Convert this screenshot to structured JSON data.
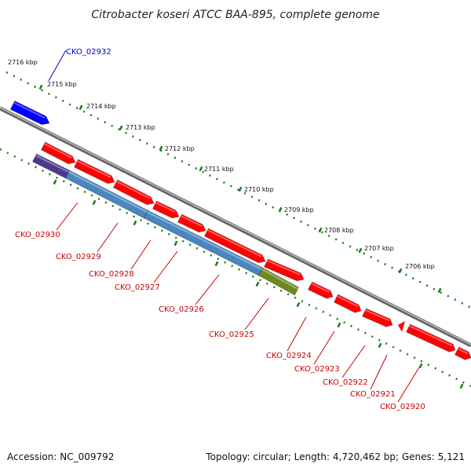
{
  "title": "Citrobacter koseri ATCC BAA-895, complete genome",
  "footer": {
    "accession": "Accession: NC_009792",
    "summary": "Topology: circular; Length: 4,720,462 bp; Genes: 5,121"
  },
  "colors": {
    "forward_gene": "#ff0000",
    "reverse_gene_red": "#ff0000",
    "blue_gene": "#0000ff",
    "steel_gene": "#4a86c0",
    "purple_gene": "#4a3a90",
    "olive_gene": "#6e8a1e",
    "label_red": "#cc0000",
    "label_blue": "#0000cc",
    "tick": "#1a7a1a",
    "backbone": "#777777"
  },
  "ticks": [
    {
      "kbp": 2716,
      "label": "2716 kbp"
    },
    {
      "kbp": 2715,
      "label": "2715 kbp"
    },
    {
      "kbp": 2714,
      "label": "2714 kbp"
    },
    {
      "kbp": 2713,
      "label": "2713 kbp"
    },
    {
      "kbp": 2712,
      "label": "2712 kbp"
    },
    {
      "kbp": 2711,
      "label": "2711 kbp"
    },
    {
      "kbp": 2710,
      "label": "2710 kbp"
    },
    {
      "kbp": 2709,
      "label": "2709 kbp"
    },
    {
      "kbp": 2708,
      "label": "2708 kbp"
    },
    {
      "kbp": 2707,
      "label": "2707 kbp"
    },
    {
      "kbp": 2706,
      "label": "2706 kbp"
    }
  ],
  "genes": [
    {
      "name": "CKO_02932",
      "strand": "+",
      "color": "blue"
    },
    {
      "name": "CKO_02930",
      "strand": "-",
      "color": "purple"
    },
    {
      "name": "CKO_02929",
      "strand": "-",
      "color": "steel"
    },
    {
      "name": "CKO_02928",
      "strand": "-",
      "color": "steel"
    },
    {
      "name": "CKO_02927",
      "strand": "-",
      "color": "steel"
    },
    {
      "name": "CKO_02926",
      "strand": "-",
      "color": "steel"
    },
    {
      "name": "CKO_02925",
      "strand": "-",
      "color": "olive"
    },
    {
      "name": "CKO_02924",
      "strand": "-",
      "color": "red"
    },
    {
      "name": "CKO_02923",
      "strand": "-",
      "color": "red"
    },
    {
      "name": "CKO_02922",
      "strand": "-",
      "color": "red"
    },
    {
      "name": "CKO_02921",
      "strand": "-",
      "color": "red"
    },
    {
      "name": "CKO_02920",
      "strand": "-",
      "color": "red"
    }
  ]
}
